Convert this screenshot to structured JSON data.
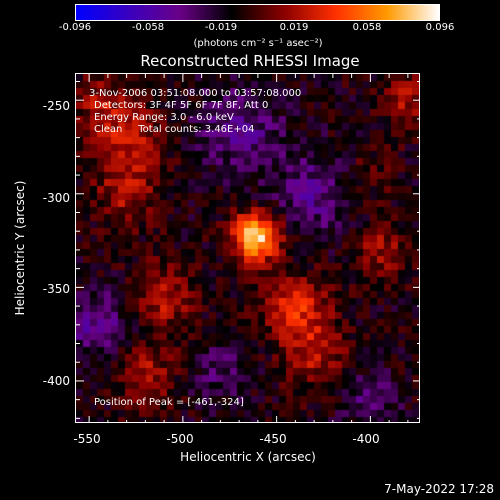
{
  "colorbar": {
    "ticks": [
      "-0.096",
      "-0.058",
      "-0.019",
      "0.019",
      "0.058",
      "0.096"
    ],
    "units": "(photons cm⁻² s⁻¹ asec⁻²)"
  },
  "title": "Reconstructed RHESSI Image",
  "info": {
    "time": "3-Nov-2006 03:51:08.000 to 03:57:08.000",
    "detectors": "Detectors: 3F 4F 5F 6F 7F 8F, Att 0",
    "energy": "Energy Range: 3.0 - 6.0 keV",
    "method": "Clean     Total counts: 3.46E+04",
    "peak": "Position of Peak = [-461,-324]"
  },
  "axes": {
    "xlabel": "Heliocentric X (arcsec)",
    "ylabel": "Heliocentric Y (arcsec)",
    "xticks": [
      "-550",
      "-500",
      "-450",
      "-400"
    ],
    "yticks": [
      "-250",
      "-300",
      "-350",
      "-400"
    ]
  },
  "footer": "7-May-2022 17:28",
  "chart_data": {
    "type": "heatmap",
    "title": "Reconstructed RHESSI Image",
    "xlabel": "Heliocentric X (arcsec)",
    "ylabel": "Heliocentric Y (arcsec)",
    "xlim": [
      -557,
      -373
    ],
    "ylim": [
      -423,
      -236
    ],
    "colorscale_range": [
      -0.096,
      0.096
    ],
    "peak_position": [
      -461,
      -324
    ],
    "peak_value": 0.096,
    "blobs": [
      {
        "x": -461,
        "y": -323,
        "value": 0.096,
        "sigma": 9
      },
      {
        "x": -530,
        "y": -270,
        "value": 0.035,
        "sigma": 14
      },
      {
        "x": -530,
        "y": -300,
        "value": 0.03,
        "sigma": 12
      },
      {
        "x": -545,
        "y": -250,
        "value": 0.025,
        "sigma": 10
      },
      {
        "x": -510,
        "y": -355,
        "value": 0.035,
        "sigma": 12
      },
      {
        "x": -520,
        "y": -395,
        "value": 0.03,
        "sigma": 12
      },
      {
        "x": -440,
        "y": -360,
        "value": 0.045,
        "sigma": 12
      },
      {
        "x": -430,
        "y": -385,
        "value": 0.035,
        "sigma": 12
      },
      {
        "x": -395,
        "y": -330,
        "value": 0.03,
        "sigma": 10
      },
      {
        "x": -380,
        "y": -250,
        "value": 0.03,
        "sigma": 10
      },
      {
        "x": -400,
        "y": -290,
        "value": 0.015,
        "sigma": 10
      },
      {
        "x": -470,
        "y": -265,
        "value": -0.03,
        "sigma": 16
      },
      {
        "x": -430,
        "y": -300,
        "value": -0.03,
        "sigma": 15
      },
      {
        "x": -545,
        "y": -370,
        "value": -0.035,
        "sigma": 12
      },
      {
        "x": -480,
        "y": -395,
        "value": -0.02,
        "sigma": 12
      },
      {
        "x": -400,
        "y": -410,
        "value": -0.025,
        "sigma": 10
      }
    ]
  },
  "colors": {
    "colormap": [
      "#0000ff",
      "#3a00c0",
      "#6a0088",
      "#000000",
      "#8a0000",
      "#ff3000",
      "#ff9a00",
      "#ffffff"
    ]
  }
}
